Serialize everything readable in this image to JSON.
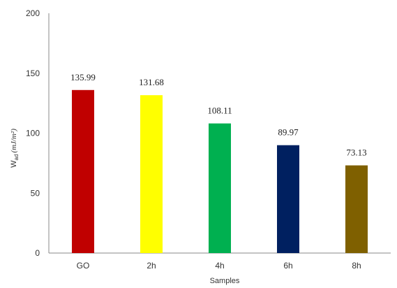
{
  "chart_data": {
    "type": "bar",
    "categories": [
      "GO",
      "2h",
      "4h",
      "6h",
      "8h"
    ],
    "values": [
      135.99,
      131.68,
      108.11,
      89.97,
      73.13
    ],
    "data_labels": [
      "135.99",
      "131.68",
      "108.11",
      "89.97",
      "73.13"
    ],
    "colors": [
      "#c00000",
      "#ffff00",
      "#00b050",
      "#002060",
      "#7f6000"
    ],
    "xlabel": "Samples",
    "ylabel": {
      "main": "W",
      "sub": "ad",
      "unit": "(mJ/m²)"
    },
    "ylim": [
      0,
      200
    ],
    "yticks": [
      "0",
      "50",
      "100",
      "150",
      "200"
    ],
    "grid": false,
    "legend": "none"
  }
}
